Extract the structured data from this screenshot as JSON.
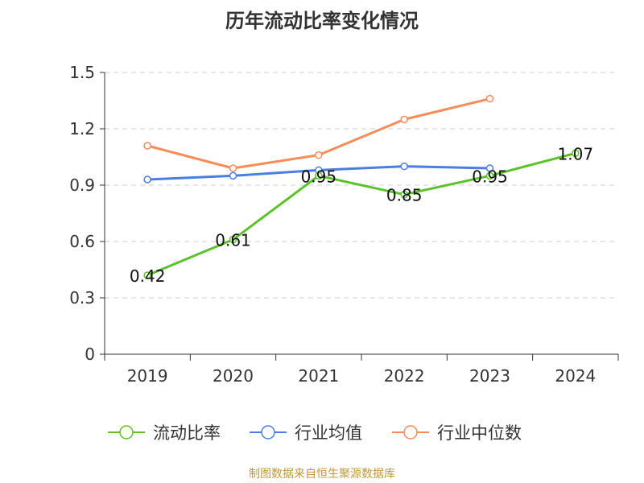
{
  "title": "历年流动比率变化情况",
  "source": "制图数据来自恒生聚源数据库",
  "colors": {
    "grid": "#cccccc",
    "axis": "#333333",
    "text": "#333333"
  },
  "chart_data": {
    "type": "line",
    "title": "历年流动比率变化情况",
    "categories": [
      "2019",
      "2020",
      "2021",
      "2022",
      "2023",
      "2024"
    ],
    "ylim": [
      0,
      1.5
    ],
    "yticks": [
      "0",
      "0.3",
      "0.6",
      "0.9",
      "1.2",
      "1.5"
    ],
    "ytick_values": [
      0,
      0.3,
      0.6,
      0.9,
      1.2,
      1.5
    ],
    "grid": true,
    "legend_position": "bottom",
    "series": [
      {
        "name": "流动比率",
        "color": "#5bc22a",
        "values": [
          0.42,
          0.61,
          0.95,
          0.85,
          0.95,
          1.07
        ],
        "labels": [
          "0.42",
          "0.61",
          "0.95",
          "0.85",
          "0.95",
          "1.07"
        ],
        "show_labels": true
      },
      {
        "name": "行业均值",
        "color": "#4a7fde",
        "values": [
          0.93,
          0.95,
          0.98,
          1.0,
          0.99,
          null
        ],
        "show_labels": false
      },
      {
        "name": "行业中位数",
        "color": "#f78c58",
        "values": [
          1.11,
          0.99,
          1.06,
          1.25,
          1.36,
          null
        ],
        "show_labels": false
      }
    ]
  }
}
